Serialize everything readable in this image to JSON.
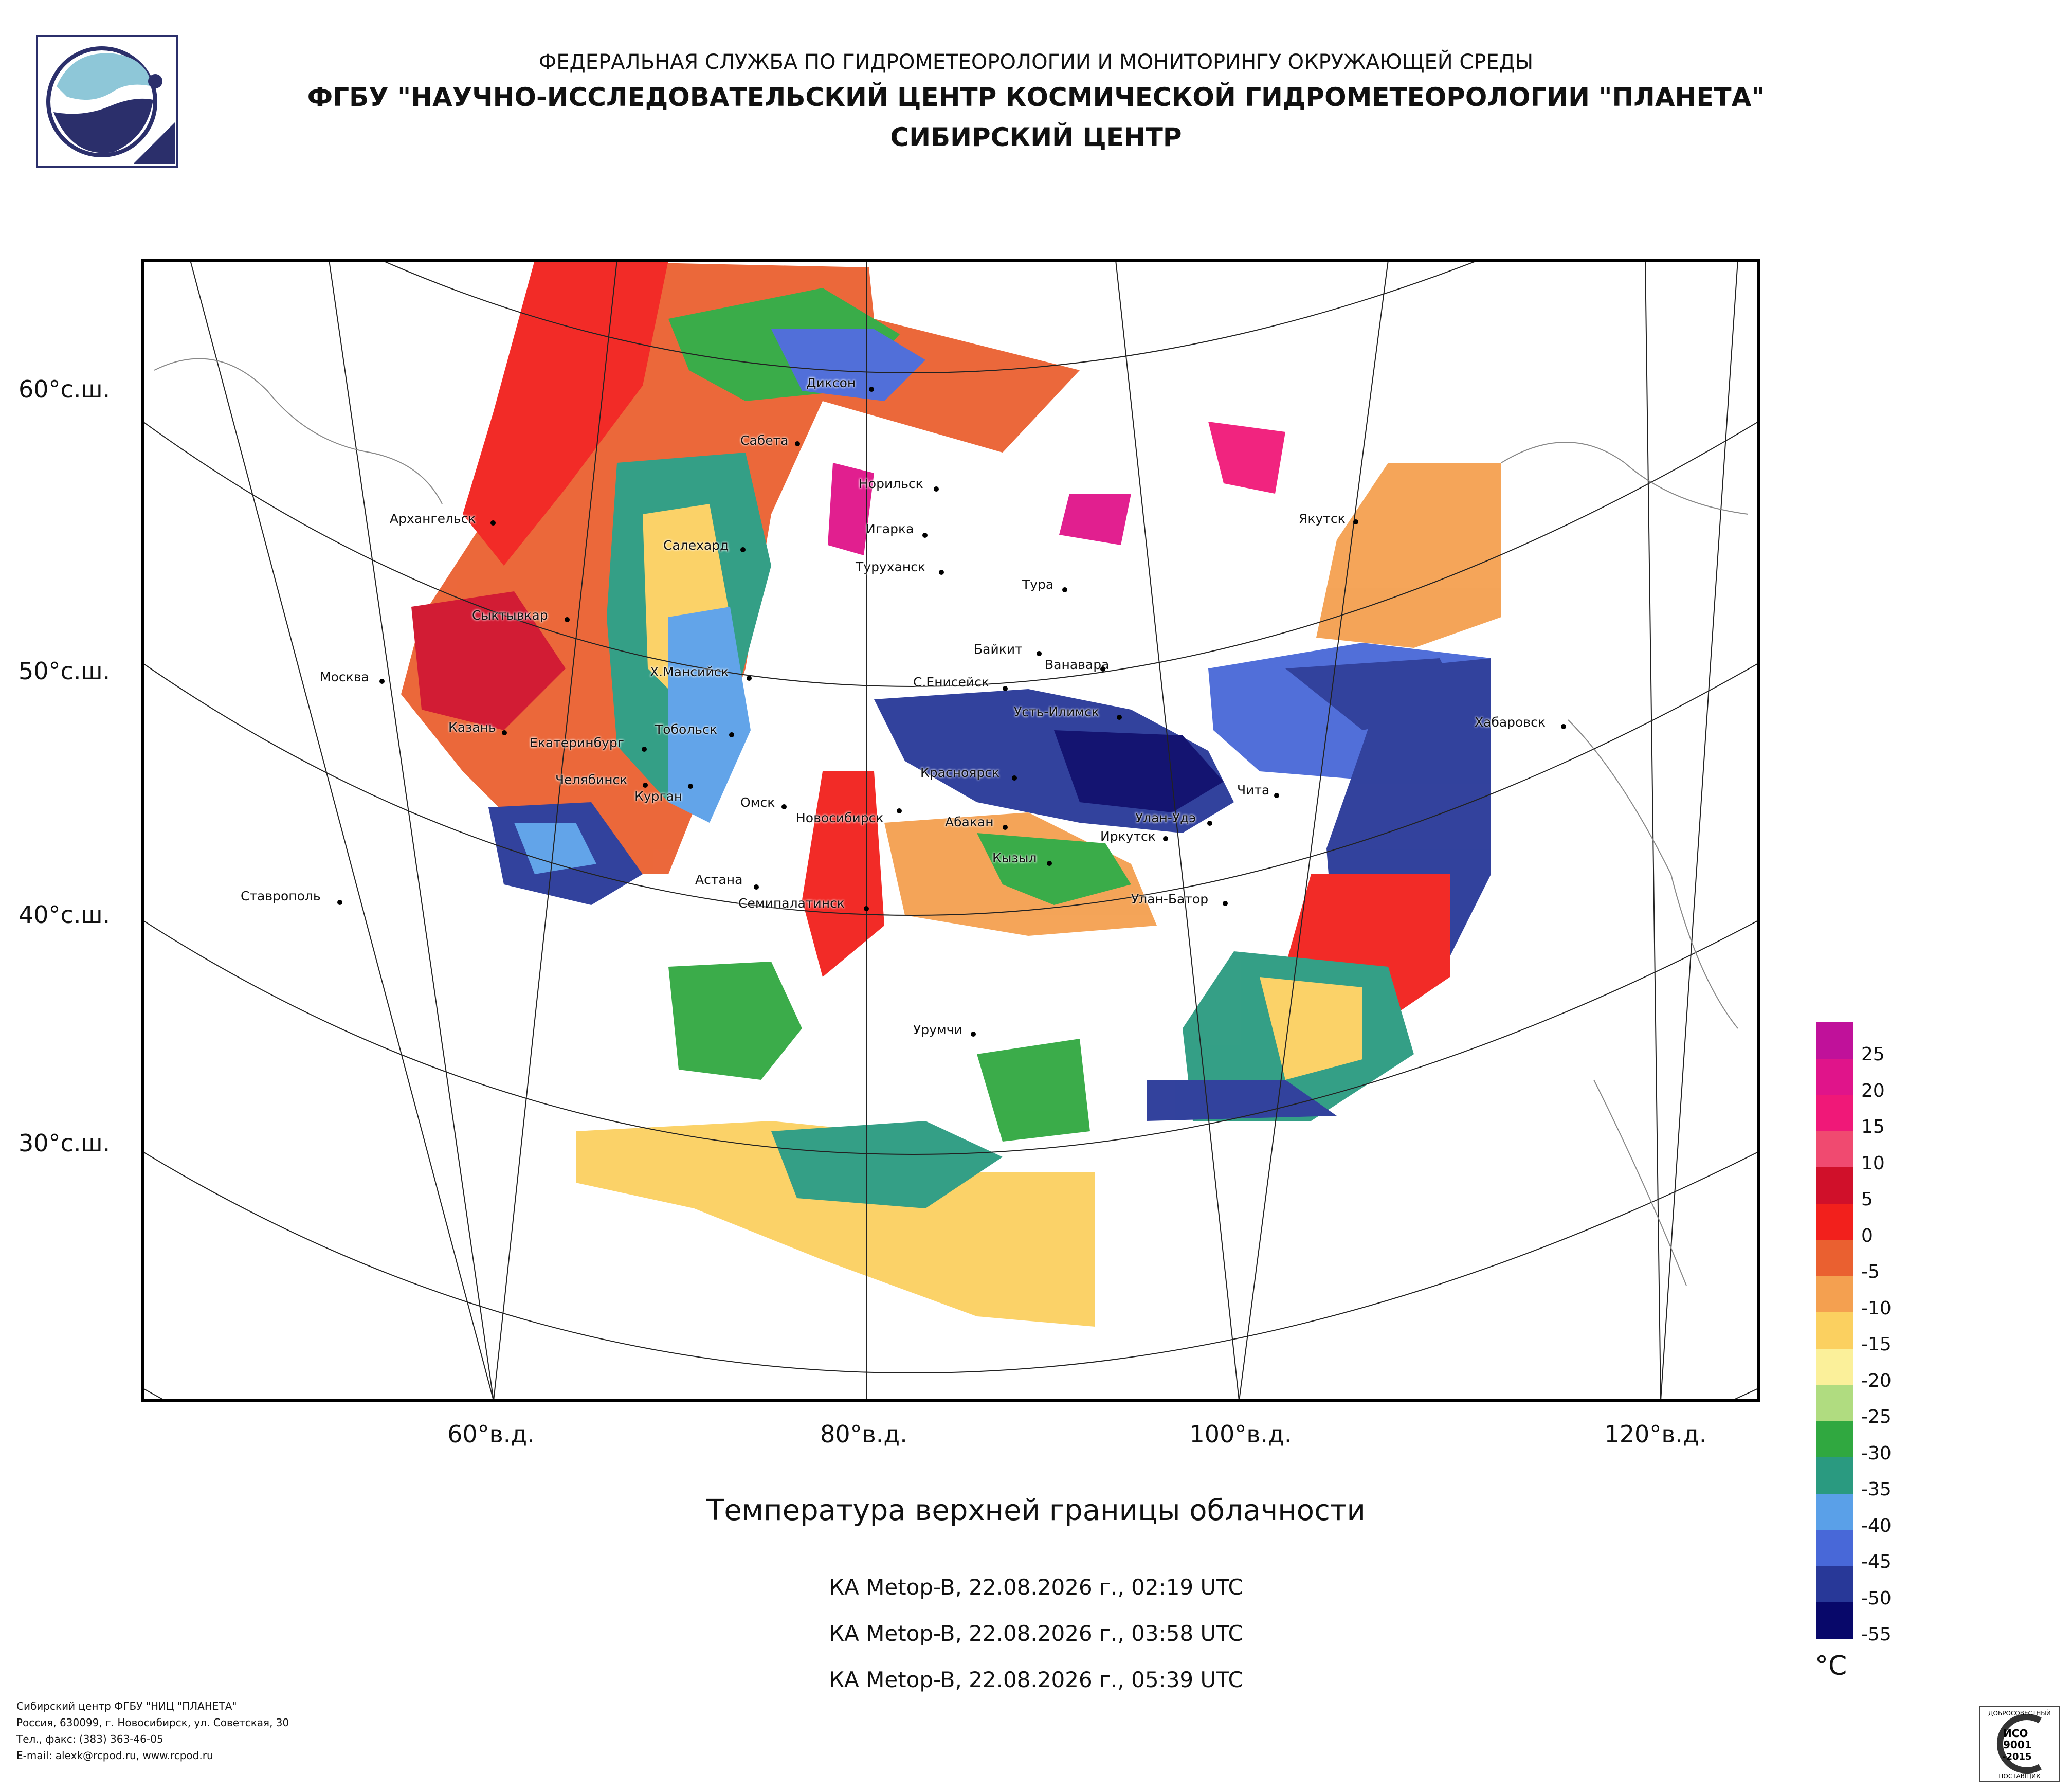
{
  "header": {
    "agency": "ФЕДЕРАЛЬНАЯ СЛУЖБА ПО ГИДРОМЕТЕОРОЛОГИИ И МОНИТОРИНГУ ОКРУЖАЮЩЕЙ СРЕДЫ",
    "institute": "ФГБУ \"НАУЧНО-ИССЛЕДОВАТЕЛЬСКИЙ ЦЕНТР КОСМИЧЕСКОЙ ГИДРОМЕТЕОРОЛОГИИ \"ПЛАНЕТА\"",
    "center": "СИБИРСКИЙ ЦЕНТР"
  },
  "map": {
    "lat_labels": [
      "60°с.ш.",
      "50°с.ш.",
      "40°с.ш.",
      "30°с.ш."
    ],
    "lon_labels": [
      "60°в.д.",
      "80°в.д.",
      "100°в.д.",
      "120°в.д."
    ],
    "cities": [
      "Диксон",
      "Сабета",
      "Норильск",
      "Игарка",
      "Туруханск",
      "Тура",
      "Якутск",
      "Архангельск",
      "Салехард",
      "Сыктывкар",
      "Байкит",
      "Ванавара",
      "Москва",
      "Х.Мансийск",
      "С.Енисейск",
      "Усть-Илимск",
      "Хабаровск",
      "Казань",
      "Екатеринбург",
      "Тобольск",
      "Челябинск",
      "Курган",
      "Красноярск",
      "Чита",
      "Омск",
      "Новосибирск",
      "Абакан",
      "Улан-Удэ",
      "Иркутск",
      "Кызыл",
      "Астана",
      "Ставрополь",
      "Семипалатинск",
      "Улан-Батор",
      "Урумчи"
    ]
  },
  "caption": "Температура верхней границы облачности",
  "passes": [
    "КА Metop-B, 22.08.2026 г., 02:19 UTC",
    "КА Metop-B, 22.08.2026 г., 03:58 UTC",
    "КА Metop-B, 22.08.2026 г., 05:39 UTC"
  ],
  "scale": {
    "labels": [
      "25",
      "20",
      "15",
      "10",
      "5",
      "0",
      "-5",
      "-10",
      "-15",
      "-20",
      "-25",
      "-30",
      "-35",
      "-40",
      "-45",
      "-50",
      "-55"
    ],
    "colors": [
      "#c0119a",
      "#e0148a",
      "#f01878",
      "#f04a70",
      "#d0102a",
      "#f2201c",
      "#ea6030",
      "#f4a050",
      "#fbd060",
      "#fbf09a",
      "#b0dc80",
      "#30a840",
      "#2a9a80",
      "#5aa0e8",
      "#4868d8",
      "#283898",
      "#08086a"
    ],
    "unit": "°C"
  },
  "footer": {
    "lines": [
      "Сибирский центр ФГБУ \"НИЦ \"ПЛАНЕТА\"",
      "Россия, 630099, г. Новосибирск, ул. Советская, 30",
      "Тел., факс: (383) 363-46-05",
      "E-mail: alexk@rcpod.ru, www.rcpod.ru"
    ]
  },
  "iso_mark": {
    "top": "ДОБРОСОВЕСТНЫЙ",
    "l1": "ИСО",
    "l2": "9001",
    "l3": "-2015",
    "bottom": "ПОСТАВЩИК"
  }
}
